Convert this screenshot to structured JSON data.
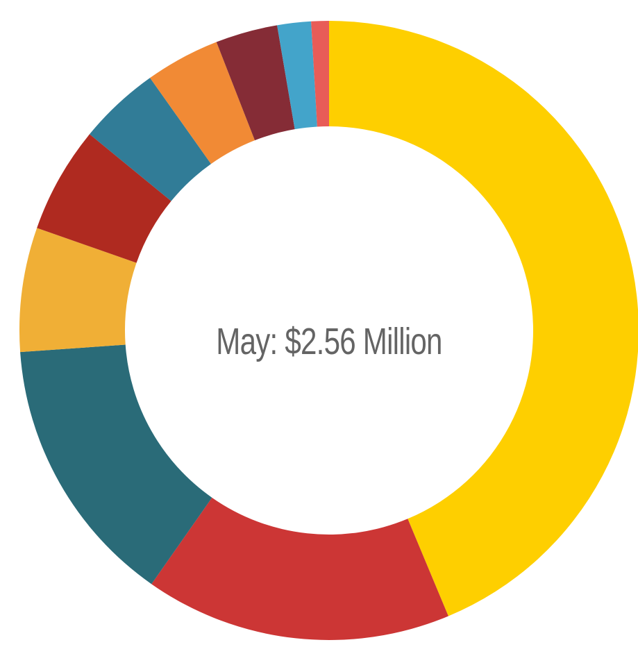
{
  "chart_data": {
    "type": "pie",
    "title": "May: $2.56 Million",
    "values": [
      47.2,
      17.3,
      15.3,
      7.0,
      6.0,
      4.6,
      4.2,
      3.5,
      1.9,
      1.0
    ],
    "colors": [
      "#FECF00",
      "#CC3635",
      "#2A6B78",
      "#F0AF36",
      "#AF2A20",
      "#317C97",
      "#F18A35",
      "#852C36",
      "#43A4CA",
      "#E85C57"
    ]
  }
}
